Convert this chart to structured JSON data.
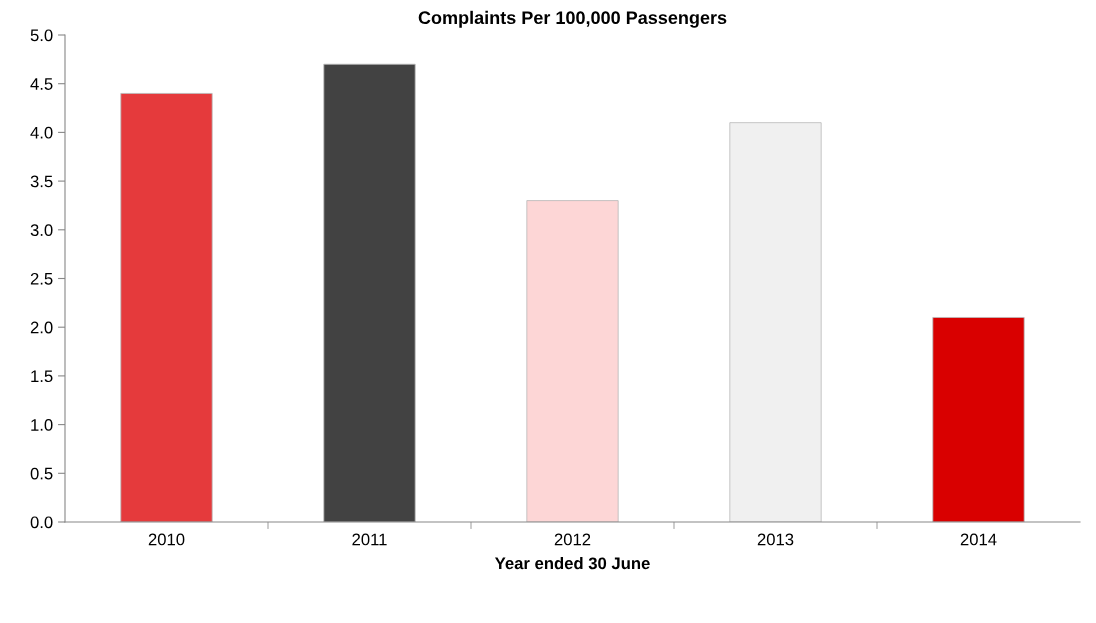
{
  "chart_data": {
    "type": "bar",
    "title": "Complaints Per 100,000 Passengers",
    "xlabel": "Year ended 30 June",
    "categories": [
      "2010",
      "2011",
      "2012",
      "2013",
      "2014"
    ],
    "values": [
      4.4,
      4.7,
      3.3,
      4.1,
      2.1
    ],
    "colors": [
      "#e53a3c",
      "#424242",
      "#fdd6d6",
      "#f0f0f0",
      "#d90000"
    ],
    "ylim": [
      0,
      5
    ],
    "yticks": [
      {
        "value": 0,
        "label": "0.0"
      },
      {
        "value": 0.5,
        "label": "0.5"
      },
      {
        "value": 1,
        "label": "1.0"
      },
      {
        "value": 1.5,
        "label": "1.5"
      },
      {
        "value": 2,
        "label": "2.0"
      },
      {
        "value": 2.5,
        "label": "2.5"
      },
      {
        "value": 3,
        "label": "3.0"
      },
      {
        "value": 3.5,
        "label": "3.5"
      },
      {
        "value": 4,
        "label": "4.0"
      },
      {
        "value": 4.5,
        "label": "4.5"
      },
      {
        "value": 5,
        "label": "5.0"
      }
    ],
    "grid": false,
    "legend": false
  }
}
